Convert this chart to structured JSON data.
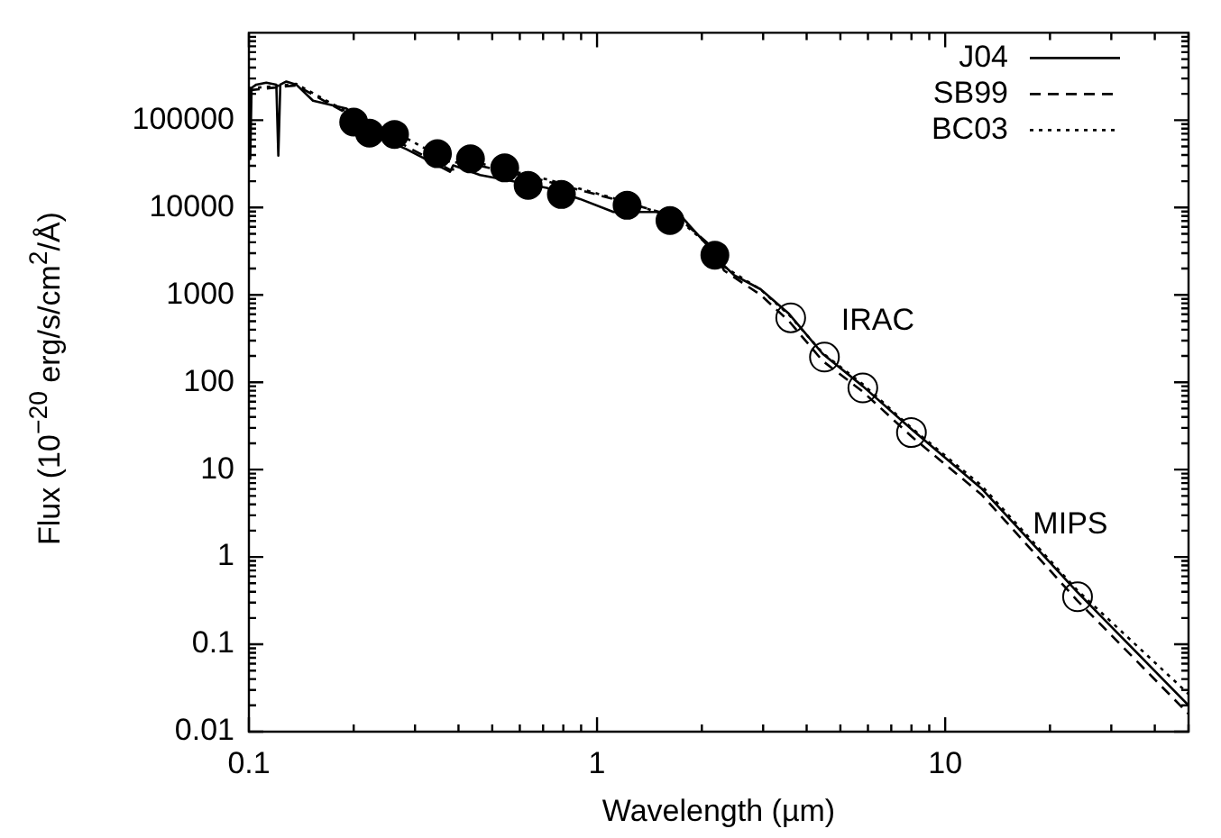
{
  "chart_data": {
    "type": "line",
    "xlabel": "Wavelength (µm)",
    "ylabel": "Flux (10$^{−20}$ erg/s/cm$^{2}$/Å)",
    "log": "xy",
    "xlim": [
      0.1,
      50
    ],
    "ylim": [
      0.01,
      1000000
    ],
    "xticks": [
      0.1,
      1,
      10
    ],
    "yticks": [
      0.01,
      0.1,
      1,
      10,
      100,
      1000,
      10000,
      100000
    ],
    "grid": false,
    "legend": "top right",
    "annotations": [
      {
        "text": "IRAC",
        "x": 3.6,
        "y": 547
      },
      {
        "text": "MIPS",
        "x": 24,
        "y": 0.35
      }
    ],
    "series": [
      {
        "name": "J04",
        "color": "#000000",
        "line_style": "solid",
        "marker": "none",
        "x": [
          0.1,
          0.1009,
          0.1018,
          0.105,
          0.1122,
          0.1199,
          0.1215,
          0.1231,
          0.1281,
          0.1368,
          0.1528,
          0.1907,
          0.2277,
          0.2837,
          0.3781,
          0.3862,
          0.4614,
          0.5751,
          0.7172,
          0.8945,
          1.115,
          1.39,
          1.7,
          2.167,
          2.316,
          2.475,
          2.95,
          3.56,
          4.45,
          5.8,
          8.0,
          12.7,
          23.9,
          50
        ],
        "values": [
          234000,
          36000,
          234000,
          255000,
          268000,
          255000,
          39200,
          255000,
          277000,
          255000,
          167000,
          136000,
          68700,
          46400,
          25600,
          30400,
          23500,
          19900,
          16800,
          12500,
          8900,
          8900,
          8900,
          3050,
          2170,
          1680,
          1160,
          606,
          211,
          90,
          29,
          6.1,
          0.4,
          0.02
        ]
      },
      {
        "name": "SB99",
        "color": "#000000",
        "line_style": "dashed",
        "marker": "none",
        "x": [
          0.1,
          0.1368,
          0.1907,
          0.2837,
          0.3781,
          0.4614,
          0.7172,
          1.115,
          1.7,
          2.167,
          2.316,
          2.95,
          3.56,
          4.45,
          5.8,
          8.0,
          12.7,
          23.9,
          50
        ],
        "values": [
          220000,
          250000,
          120000,
          50000,
          27000,
          30000,
          20000,
          12500,
          7800,
          3400,
          1900,
          1000,
          500,
          175,
          78,
          24,
          5.2,
          0.32,
          0.016
        ]
      },
      {
        "name": "BC03",
        "color": "#000000",
        "line_style": "dotted",
        "marker": "none",
        "x": [
          0.1,
          0.1368,
          0.1907,
          0.2837,
          0.3781,
          0.4614,
          0.7172,
          1.115,
          1.7,
          2.167,
          2.316,
          2.95,
          3.56,
          4.45,
          5.8,
          8.0,
          12.7,
          23.9,
          50
        ],
        "values": [
          230000,
          260000,
          125000,
          62000,
          33000,
          32000,
          21000,
          12800,
          7500,
          3300,
          2100,
          1150,
          590,
          215,
          95,
          30,
          6.6,
          0.42,
          0.027
        ]
      },
      {
        "type": "scatter",
        "color": "#000000",
        "marker": "circle",
        "x": [
          0.2,
          0.222,
          0.262,
          0.348,
          0.433,
          0.543,
          0.634,
          0.79,
          1.22,
          1.62,
          2.18
        ],
        "values": [
          95000,
          71000,
          68700,
          41300,
          36000,
          28400,
          17900,
          14100,
          10600,
          7100,
          2850
        ]
      },
      {
        "type": "scatter",
        "color": "#000000",
        "marker": "circle",
        "x": [
          3.6,
          4.5,
          5.8,
          8.0,
          24
        ],
        "values": [
          547,
          194,
          86,
          26.5,
          0.35
        ]
      }
    ]
  }
}
